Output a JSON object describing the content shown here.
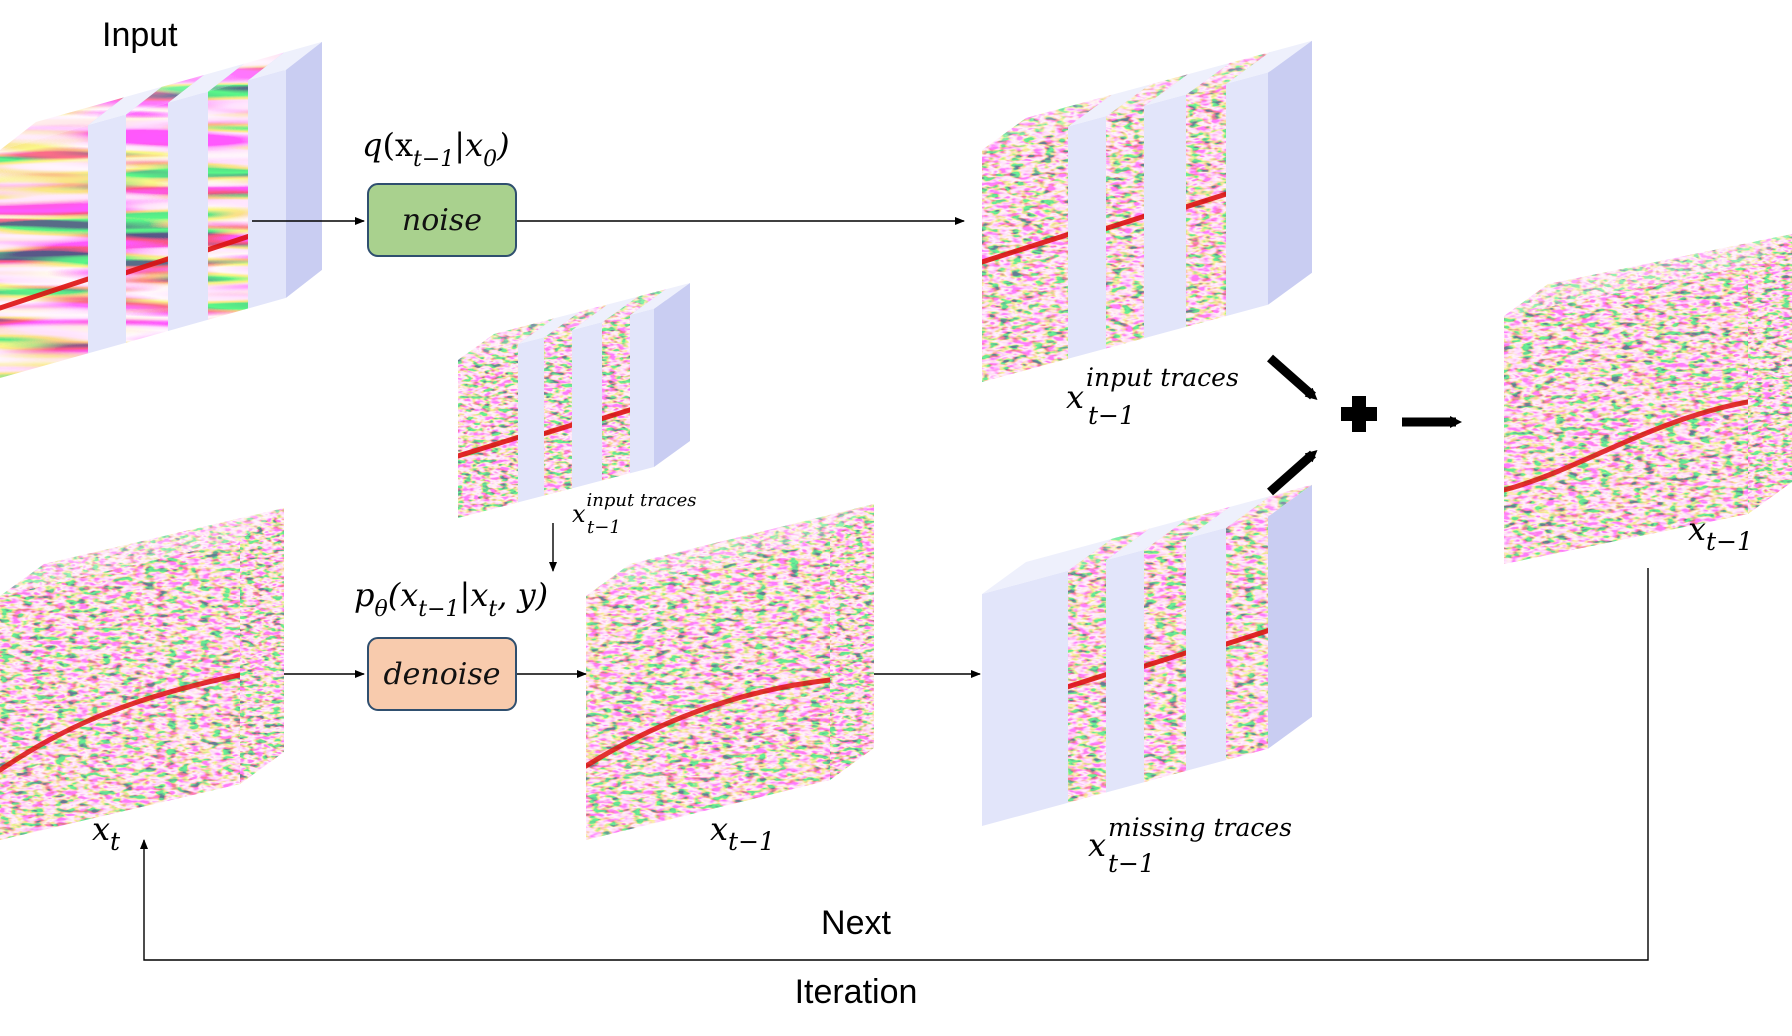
{
  "title": "Input",
  "processes": {
    "noise": {
      "label": "noise",
      "formula": {
        "head": "q",
        "args": "(x",
        "sub1": "t−1",
        "mid": "|x",
        "sub2": "0",
        "tail": ")"
      },
      "color": "#a9d18e"
    },
    "denoise": {
      "label": "denoise",
      "formula": {
        "head": "p",
        "head_sub": "θ",
        "args": "(x",
        "sub1": "t−1",
        "mid": "|x",
        "sub2": "t",
        "tail": ", y)"
      },
      "color": "#f8cbad"
    }
  },
  "volume_labels": {
    "input_traces_top": {
      "base": "x",
      "sup": "input traces",
      "sub": "t−1"
    },
    "input_traces_small": {
      "base": "x",
      "sup": "input traces",
      "sub": "t−1"
    },
    "missing_traces": {
      "base": "x",
      "sup": "missing traces",
      "sub": "t−1"
    },
    "x_t": {
      "base": "x",
      "sub": "t"
    },
    "x_t_minus_1_mid": {
      "base": "x",
      "sub": "t−1"
    },
    "x_t_minus_1_right": {
      "base": "x",
      "sub": "t−1"
    }
  },
  "operators": {
    "plus": "+"
  },
  "loop": {
    "label_top": "Next",
    "label_bottom": "Iteration"
  },
  "colors": {
    "seismic_blue": "#2233cc",
    "seismic_red": "#dd1111",
    "volume_face": "#e2e5fa",
    "volume_side": "#c9cdf2",
    "volume_top": "#eef0fc",
    "box_border": "#2f4f6f"
  }
}
